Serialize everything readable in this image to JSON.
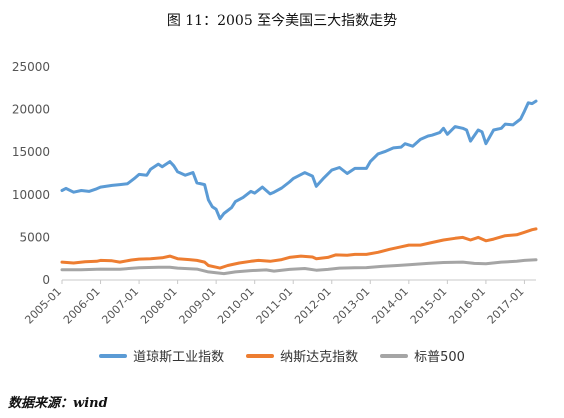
{
  "chart_data": {
    "type": "line",
    "title": "图 11：2005 至今美国三大指数走势",
    "x_tick_labels": [
      "2005-01",
      "2006-01",
      "2007-01",
      "2008-01",
      "2009-01",
      "2010-01",
      "2011-01",
      "2012-01",
      "2013-01",
      "2014-01",
      "2015-01",
      "2016-01",
      "2017-01"
    ],
    "x_range": [
      2005.0,
      2017.3
    ],
    "ylim": [
      0,
      25000
    ],
    "y_ticks": [
      0,
      5000,
      10000,
      15000,
      20000,
      25000
    ],
    "grid": false,
    "legend_position": "bottom",
    "series": [
      {
        "name": "道琼斯工业指数",
        "color": "#5b9bd5",
        "points": [
          [
            2005.0,
            10500
          ],
          [
            2005.1,
            10750
          ],
          [
            2005.3,
            10300
          ],
          [
            2005.5,
            10500
          ],
          [
            2005.7,
            10400
          ],
          [
            2005.9,
            10700
          ],
          [
            2006.0,
            10900
          ],
          [
            2006.3,
            11100
          ],
          [
            2006.5,
            11200
          ],
          [
            2006.7,
            11300
          ],
          [
            2006.9,
            12000
          ],
          [
            2007.0,
            12400
          ],
          [
            2007.2,
            12300
          ],
          [
            2007.3,
            13000
          ],
          [
            2007.5,
            13600
          ],
          [
            2007.6,
            13300
          ],
          [
            2007.8,
            13900
          ],
          [
            2007.9,
            13400
          ],
          [
            2008.0,
            12700
          ],
          [
            2008.2,
            12300
          ],
          [
            2008.4,
            12600
          ],
          [
            2008.5,
            11400
          ],
          [
            2008.7,
            11200
          ],
          [
            2008.8,
            9400
          ],
          [
            2008.9,
            8600
          ],
          [
            2009.0,
            8300
          ],
          [
            2009.1,
            7200
          ],
          [
            2009.2,
            7800
          ],
          [
            2009.4,
            8500
          ],
          [
            2009.5,
            9200
          ],
          [
            2009.7,
            9700
          ],
          [
            2009.9,
            10400
          ],
          [
            2010.0,
            10200
          ],
          [
            2010.2,
            10900
          ],
          [
            2010.4,
            10100
          ],
          [
            2010.5,
            10300
          ],
          [
            2010.7,
            10800
          ],
          [
            2010.9,
            11500
          ],
          [
            2011.0,
            11900
          ],
          [
            2011.3,
            12600
          ],
          [
            2011.5,
            12200
          ],
          [
            2011.6,
            11000
          ],
          [
            2011.8,
            12000
          ],
          [
            2012.0,
            12900
          ],
          [
            2012.2,
            13200
          ],
          [
            2012.4,
            12500
          ],
          [
            2012.6,
            13100
          ],
          [
            2012.9,
            13100
          ],
          [
            2013.0,
            13900
          ],
          [
            2013.2,
            14800
          ],
          [
            2013.4,
            15100
          ],
          [
            2013.6,
            15500
          ],
          [
            2013.8,
            15600
          ],
          [
            2013.9,
            16000
          ],
          [
            2014.1,
            15700
          ],
          [
            2014.3,
            16500
          ],
          [
            2014.5,
            16900
          ],
          [
            2014.6,
            17000
          ],
          [
            2014.8,
            17300
          ],
          [
            2014.9,
            17800
          ],
          [
            2015.0,
            17100
          ],
          [
            2015.2,
            18000
          ],
          [
            2015.4,
            17800
          ],
          [
            2015.5,
            17600
          ],
          [
            2015.6,
            16300
          ],
          [
            2015.8,
            17600
          ],
          [
            2015.9,
            17400
          ],
          [
            2016.0,
            16000
          ],
          [
            2016.2,
            17600
          ],
          [
            2016.4,
            17800
          ],
          [
            2016.5,
            18300
          ],
          [
            2016.7,
            18200
          ],
          [
            2016.9,
            18900
          ],
          [
            2017.0,
            19800
          ],
          [
            2017.1,
            20800
          ],
          [
            2017.2,
            20700
          ],
          [
            2017.3,
            21000
          ]
        ]
      },
      {
        "name": "纳斯达克指数",
        "color": "#ed7d31",
        "points": [
          [
            2005.0,
            2100
          ],
          [
            2005.3,
            2000
          ],
          [
            2005.6,
            2150
          ],
          [
            2005.9,
            2200
          ],
          [
            2006.0,
            2300
          ],
          [
            2006.3,
            2250
          ],
          [
            2006.5,
            2100
          ],
          [
            2006.8,
            2350
          ],
          [
            2007.0,
            2450
          ],
          [
            2007.3,
            2500
          ],
          [
            2007.6,
            2600
          ],
          [
            2007.8,
            2800
          ],
          [
            2008.0,
            2500
          ],
          [
            2008.3,
            2400
          ],
          [
            2008.5,
            2300
          ],
          [
            2008.7,
            2100
          ],
          [
            2008.8,
            1700
          ],
          [
            2009.0,
            1500
          ],
          [
            2009.1,
            1400
          ],
          [
            2009.3,
            1700
          ],
          [
            2009.6,
            2000
          ],
          [
            2009.9,
            2200
          ],
          [
            2010.1,
            2300
          ],
          [
            2010.4,
            2200
          ],
          [
            2010.7,
            2400
          ],
          [
            2010.9,
            2650
          ],
          [
            2011.2,
            2800
          ],
          [
            2011.5,
            2700
          ],
          [
            2011.6,
            2500
          ],
          [
            2011.9,
            2650
          ],
          [
            2012.1,
            2950
          ],
          [
            2012.4,
            2900
          ],
          [
            2012.6,
            3000
          ],
          [
            2012.9,
            3000
          ],
          [
            2013.2,
            3250
          ],
          [
            2013.5,
            3600
          ],
          [
            2013.8,
            3900
          ],
          [
            2014.0,
            4100
          ],
          [
            2014.3,
            4100
          ],
          [
            2014.6,
            4400
          ],
          [
            2014.9,
            4700
          ],
          [
            2015.2,
            4900
          ],
          [
            2015.4,
            5000
          ],
          [
            2015.6,
            4700
          ],
          [
            2015.8,
            5000
          ],
          [
            2016.0,
            4600
          ],
          [
            2016.2,
            4800
          ],
          [
            2016.5,
            5200
          ],
          [
            2016.8,
            5300
          ],
          [
            2017.0,
            5600
          ],
          [
            2017.2,
            5900
          ],
          [
            2017.3,
            6000
          ]
        ]
      },
      {
        "name": "标普500",
        "color": "#a5a5a5",
        "points": [
          [
            2005.0,
            1200
          ],
          [
            2005.5,
            1200
          ],
          [
            2006.0,
            1280
          ],
          [
            2006.5,
            1270
          ],
          [
            2007.0,
            1430
          ],
          [
            2007.5,
            1500
          ],
          [
            2007.8,
            1500
          ],
          [
            2008.0,
            1400
          ],
          [
            2008.5,
            1280
          ],
          [
            2008.8,
            950
          ],
          [
            2009.0,
            850
          ],
          [
            2009.2,
            750
          ],
          [
            2009.5,
            950
          ],
          [
            2009.9,
            1100
          ],
          [
            2010.3,
            1180
          ],
          [
            2010.5,
            1050
          ],
          [
            2010.9,
            1250
          ],
          [
            2011.3,
            1350
          ],
          [
            2011.6,
            1150
          ],
          [
            2011.9,
            1250
          ],
          [
            2012.2,
            1400
          ],
          [
            2012.6,
            1430
          ],
          [
            2012.9,
            1450
          ],
          [
            2013.3,
            1600
          ],
          [
            2013.7,
            1700
          ],
          [
            2014.0,
            1800
          ],
          [
            2014.5,
            1950
          ],
          [
            2014.9,
            2050
          ],
          [
            2015.4,
            2100
          ],
          [
            2015.7,
            1950
          ],
          [
            2016.0,
            1900
          ],
          [
            2016.4,
            2100
          ],
          [
            2016.8,
            2200
          ],
          [
            2017.0,
            2300
          ],
          [
            2017.3,
            2370
          ]
        ]
      }
    ],
    "source": "数据来源：wind"
  }
}
